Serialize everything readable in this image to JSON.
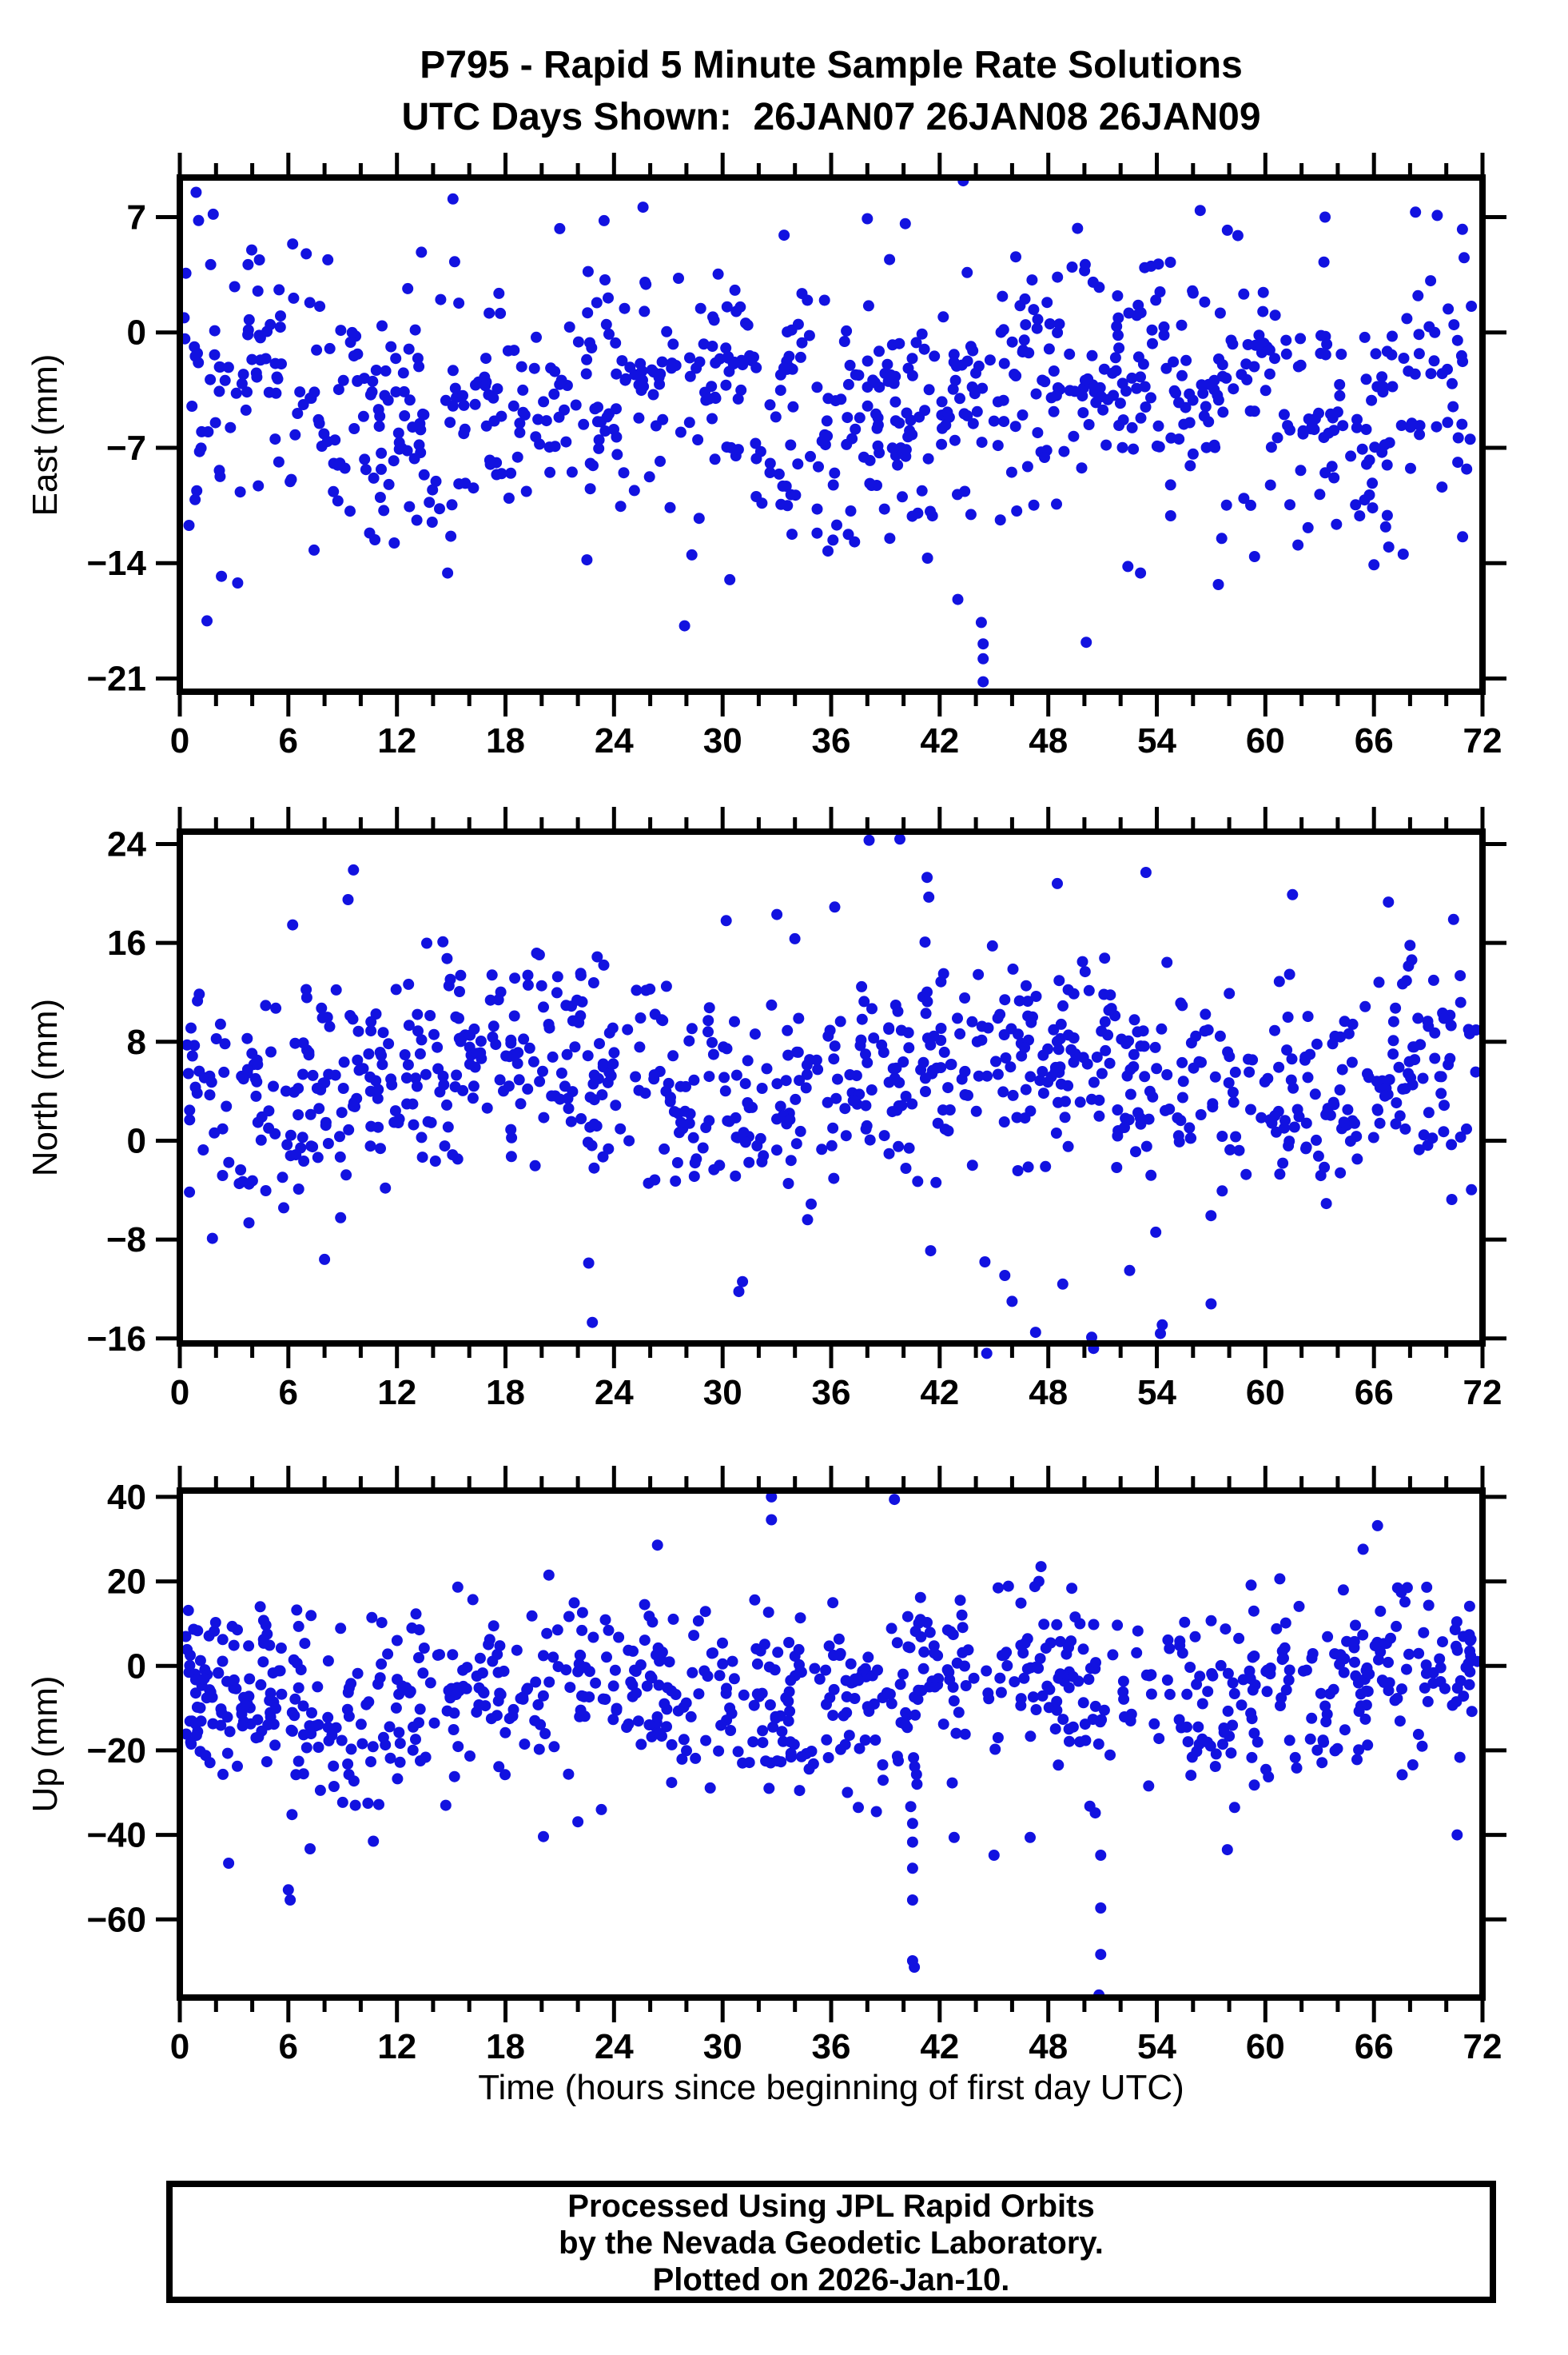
{
  "title": "P795 - Rapid 5 Minute Sample Rate Solutions",
  "subtitle": "UTC Days Shown:  26JAN07 26JAN08 26JAN09",
  "colors": {
    "dot": "#1212e0",
    "axis": "#000000",
    "background": "#ffffff"
  },
  "x_axis": {
    "label": "Time (hours since beginning of first day UTC)",
    "min": 0,
    "max": 72,
    "major_ticks": [
      0,
      6,
      12,
      18,
      24,
      30,
      36,
      42,
      48,
      54,
      60,
      66,
      72
    ],
    "minor_step": 2
  },
  "footer": {
    "lines": [
      "Processed Using JPL Rapid Orbits",
      "by the Nevada Geodetic Laboratory.",
      "Plotted on 2026-Jan-10."
    ]
  },
  "chart_data": [
    {
      "type": "scatter",
      "name": "east",
      "ylabel": "East (mm)",
      "xlabel": "Time (hours since beginning of first day UTC)",
      "ylim": [
        -21.8,
        9.4
      ],
      "yticks": [
        7,
        0,
        -7,
        -14,
        -21
      ],
      "grid": false,
      "legend": "none",
      "band": {
        "n": 830,
        "seed": 7,
        "mean": -3.8,
        "std": 3.8,
        "min": -13.8,
        "max": 8.0,
        "wave": [
          1.8,
          3,
          1.0
        ]
      },
      "outliers": [
        [
          0.9,
          8.5
        ],
        [
          43.3,
          9.2
        ],
        [
          15.1,
          8.1
        ],
        [
          25.6,
          7.6
        ],
        [
          21.0,
          6.3
        ],
        [
          38.0,
          6.9
        ],
        [
          56.4,
          7.4
        ],
        [
          57.9,
          6.2
        ],
        [
          63.3,
          7.0
        ],
        [
          68.3,
          7.3
        ],
        [
          69.5,
          7.1
        ],
        [
          40.1,
          6.6
        ],
        [
          33.4,
          5.9
        ],
        [
          1.5,
          -17.5
        ],
        [
          2.3,
          -14.8
        ],
        [
          3.2,
          -15.2
        ],
        [
          14.8,
          -14.6
        ],
        [
          22.5,
          -13.8
        ],
        [
          27.9,
          -17.8
        ],
        [
          28.3,
          -13.5
        ],
        [
          30.4,
          -15.0
        ],
        [
          36.1,
          -12.6
        ],
        [
          43.0,
          -16.2
        ],
        [
          44.3,
          -17.6
        ],
        [
          44.4,
          -18.9
        ],
        [
          44.4,
          -19.8
        ],
        [
          44.4,
          -21.2
        ],
        [
          50.1,
          -18.8
        ],
        [
          52.4,
          -14.2
        ],
        [
          53.1,
          -14.6
        ],
        [
          57.4,
          -15.3
        ],
        [
          59.4,
          -13.6
        ],
        [
          61.8,
          -12.9
        ],
        [
          66.0,
          -14.1
        ],
        [
          70.9,
          -12.4
        ]
      ]
    },
    {
      "type": "scatter",
      "name": "north",
      "ylabel": "North (mm)",
      "xlabel": "Time (hours since beginning of first day UTC)",
      "ylim": [
        -16.4,
        25.0
      ],
      "yticks": [
        24,
        16,
        8,
        0,
        -8,
        -16
      ],
      "grid": false,
      "legend": "none",
      "band": {
        "n": 830,
        "seed": 11,
        "mean": 5.2,
        "std": 4.2,
        "min": -7.5,
        "max": 17.5,
        "wave": [
          2.2,
          2.5,
          4.0
        ]
      },
      "outliers": [
        [
          38.1,
          24.3
        ],
        [
          39.8,
          24.4
        ],
        [
          9.6,
          21.9
        ],
        [
          9.3,
          19.5
        ],
        [
          41.3,
          21.3
        ],
        [
          41.4,
          19.7
        ],
        [
          48.5,
          20.8
        ],
        [
          53.4,
          21.7
        ],
        [
          61.5,
          19.9
        ],
        [
          36.2,
          18.9
        ],
        [
          33.0,
          18.3
        ],
        [
          30.2,
          17.8
        ],
        [
          66.8,
          19.3
        ],
        [
          70.4,
          17.9
        ],
        [
          1.8,
          -7.9
        ],
        [
          8.0,
          -9.6
        ],
        [
          22.6,
          -9.9
        ],
        [
          22.8,
          -14.7
        ],
        [
          30.9,
          -12.2
        ],
        [
          31.1,
          -11.4
        ],
        [
          41.5,
          -8.9
        ],
        [
          44.5,
          -9.8
        ],
        [
          44.6,
          -17.2
        ],
        [
          45.6,
          -10.9
        ],
        [
          46.0,
          -13.0
        ],
        [
          47.3,
          -15.5
        ],
        [
          48.8,
          -11.6
        ],
        [
          50.4,
          -15.9
        ],
        [
          50.5,
          -16.8
        ],
        [
          52.5,
          -10.5
        ],
        [
          54.2,
          -15.6
        ],
        [
          54.3,
          -14.9
        ],
        [
          57.0,
          -13.2
        ]
      ]
    },
    {
      "type": "scatter",
      "name": "up",
      "ylabel": "Up (mm)",
      "xlabel": "Time (hours since beginning of first day UTC)",
      "ylim": [
        -78.5,
        41.5
      ],
      "yticks": [
        40,
        20,
        0,
        -20,
        -40,
        -60
      ],
      "grid": false,
      "legend": "none",
      "band": {
        "n": 830,
        "seed": 23,
        "mean": -6.5,
        "std": 10.5,
        "min": -30.0,
        "max": 21.0,
        "wave": [
          3.5,
          3,
          2.2
        ]
      },
      "outliers": [
        [
          32.7,
          40.0
        ],
        [
          32.7,
          34.6
        ],
        [
          39.5,
          39.4
        ],
        [
          66.2,
          33.2
        ],
        [
          65.4,
          27.6
        ],
        [
          26.4,
          28.6
        ],
        [
          47.6,
          23.5
        ],
        [
          20.4,
          21.5
        ],
        [
          60.8,
          20.6
        ],
        [
          2.7,
          -46.7
        ],
        [
          6.0,
          -53.0
        ],
        [
          6.1,
          -55.4
        ],
        [
          6.2,
          -35.2
        ],
        [
          7.2,
          -43.3
        ],
        [
          9.0,
          -32.3
        ],
        [
          9.7,
          -33.0
        ],
        [
          10.4,
          -32.5
        ],
        [
          10.7,
          -41.5
        ],
        [
          11.0,
          -32.8
        ],
        [
          14.7,
          -33.0
        ],
        [
          20.1,
          -40.4
        ],
        [
          22.0,
          -36.9
        ],
        [
          23.3,
          -34.0
        ],
        [
          37.5,
          -33.5
        ],
        [
          38.5,
          -34.5
        ],
        [
          40.4,
          -33.3
        ],
        [
          40.5,
          -37.3
        ],
        [
          40.5,
          -41.7
        ],
        [
          40.5,
          -47.9
        ],
        [
          40.5,
          -55.4
        ],
        [
          40.5,
          -69.8
        ],
        [
          40.6,
          -71.3
        ],
        [
          42.8,
          -40.6
        ],
        [
          45.0,
          -44.8
        ],
        [
          47.0,
          -40.6
        ],
        [
          50.3,
          -33.2
        ],
        [
          50.6,
          -34.8
        ],
        [
          50.9,
          -44.8
        ],
        [
          50.9,
          -57.3
        ],
        [
          50.9,
          -68.3
        ],
        [
          50.8,
          -77.9
        ],
        [
          57.9,
          -43.5
        ],
        [
          58.3,
          -33.5
        ],
        [
          70.6,
          -40.0
        ]
      ]
    }
  ]
}
